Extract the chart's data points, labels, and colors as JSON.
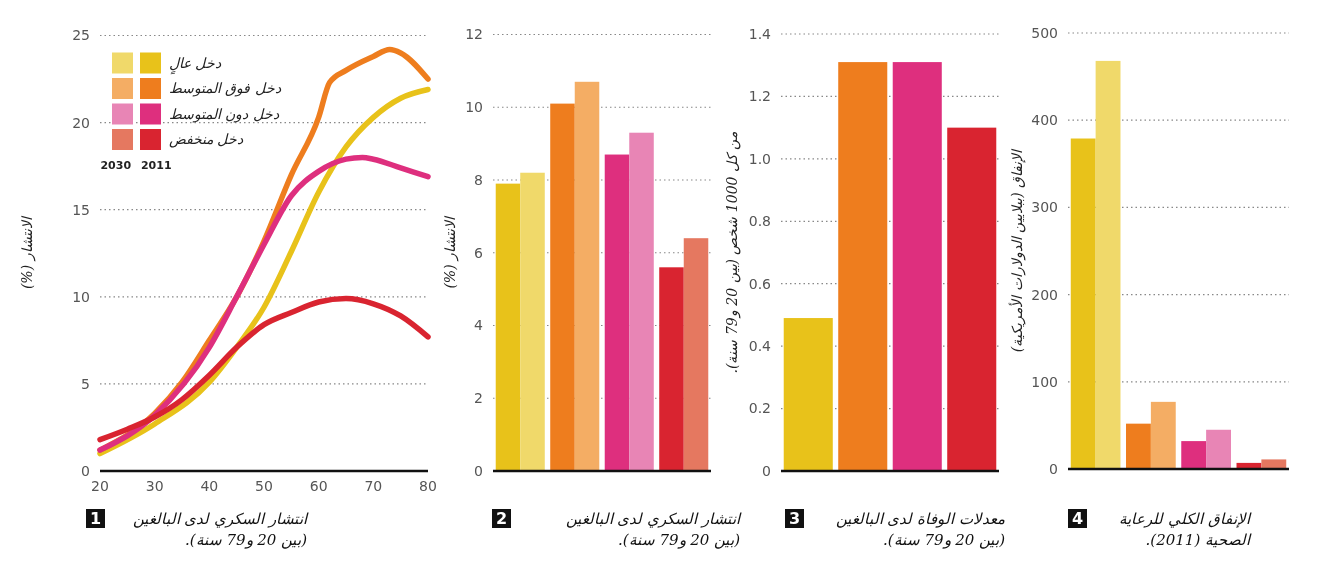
{
  "chart_data": [
    {
      "type": "line",
      "title": "انتشار السكري لدى البالغين",
      "subtitle": "(بين 20 و79 سنة).",
      "annotations": [
        "1"
      ],
      "legend_title": "2030 2011",
      "ylabel": "الانتشار (%)",
      "xlim": [
        20,
        80
      ],
      "xticks": [
        20,
        30,
        40,
        50,
        60,
        70,
        80
      ],
      "ylim": [
        0,
        25
      ],
      "yticks": [
        0,
        5,
        10,
        15,
        20,
        25
      ],
      "grid": "y",
      "legend": "top left",
      "series": [
        {
          "name": "دخل عالٍ",
          "color": "#e8c21a",
          "x": [
            20,
            30,
            40,
            45,
            50,
            55,
            60,
            65,
            70,
            75,
            80
          ],
          "values": [
            1.0,
            2.7,
            5.1,
            7.1,
            9.4,
            12.6,
            16.0,
            18.6,
            20.3,
            21.4,
            21.9
          ]
        },
        {
          "name": "دخل فوق المتوسط",
          "color": "#ee7d1e",
          "x": [
            20,
            30,
            35,
            40,
            45,
            50,
            55,
            60,
            62,
            65,
            70,
            73,
            75,
            80
          ],
          "values": [
            1.2,
            3.3,
            5.1,
            7.5,
            10.0,
            13.2,
            17.0,
            20.3,
            22.3,
            23.0,
            23.8,
            24.2,
            24.0,
            22.5
          ]
        },
        {
          "name": "دخل دون المتوسط",
          "color": "#de2f7e",
          "x": [
            20,
            30,
            40,
            45,
            50,
            55,
            60,
            65,
            68,
            70,
            75,
            80
          ],
          "values": [
            1.2,
            3.2,
            7.1,
            10.0,
            13.0,
            15.8,
            17.2,
            17.9,
            18.0,
            17.9,
            17.4,
            16.9
          ]
        },
        {
          "name": "دخل منخفض",
          "color": "#d92430",
          "x": [
            20,
            25,
            30,
            35,
            40,
            45,
            50,
            55,
            60,
            65,
            70,
            75,
            80
          ],
          "values": [
            1.8,
            2.4,
            3.1,
            4.1,
            5.5,
            7.1,
            8.4,
            9.1,
            9.7,
            9.9,
            9.6,
            8.9,
            7.7
          ]
        }
      ]
    },
    {
      "type": "bar",
      "title": "انتشار السكري لدى البالغين",
      "subtitle": "(بين 20 و79 سنة).",
      "annotations": [
        "2"
      ],
      "ylabel": "الانتشار (%)",
      "categories": [
        null,
        null,
        null,
        null
      ],
      "ylim": [
        0,
        12
      ],
      "yticks": [
        0,
        2,
        4,
        6,
        8,
        10,
        12
      ],
      "grid": "y",
      "series": [
        {
          "colors": [
            "#e8c21a",
            "#ee7d1e",
            "#de2f7e",
            "#d92430"
          ],
          "values": [
            7.9,
            10.1,
            8.7,
            5.6
          ]
        },
        {
          "colors": [
            "#f0d96a",
            "#f4ad64",
            "#e885b5",
            "#e57860"
          ],
          "values": [
            8.2,
            10.7,
            9.3,
            6.4
          ]
        }
      ]
    },
    {
      "type": "bar",
      "title": "معدلات الوفاة لدى البالغين",
      "subtitle": "(بين 20 و79 سنة).",
      "annotations": [
        "3"
      ],
      "ylabel": "من كل 1000 شخص (بين 20 و79 سنة).",
      "categories": [
        null,
        null,
        null,
        null
      ],
      "ylim": [
        0,
        1.4
      ],
      "yticks": [
        {
          "value": 0,
          "label": "0"
        },
        {
          "value": 0.2,
          "label": "0.2"
        },
        {
          "value": 0.4,
          "label": "0.4"
        },
        {
          "value": 0.6,
          "label": "0.6"
        },
        {
          "value": 0.8,
          "label": "0.8"
        },
        {
          "value": 1,
          "label": "1.0"
        },
        {
          "value": 1.2,
          "label": "1.2"
        },
        {
          "value": 1.4,
          "label": "1.4"
        }
      ],
      "grid": "y",
      "values": [
        0.49,
        1.31,
        1.31,
        1.1
      ],
      "colors": [
        "#e8c21a",
        "#ee7d1e",
        "#de2f7e",
        "#d92430"
      ]
    },
    {
      "type": "bar",
      "title": "الإنفاق الكلي للرعاية",
      "subtitle": "الصحية (2011).",
      "annotations": [
        "4"
      ],
      "ylabel": "الإنفاق (ببلايين الدولارات الأمريكية)",
      "categories": [
        null,
        null,
        null,
        null
      ],
      "ylim": [
        0,
        500
      ],
      "yticks": [
        0,
        100,
        200,
        300,
        400,
        500
      ],
      "grid": "y",
      "series": [
        {
          "colors": [
            "#e8c21a",
            "#ee7d1e",
            "#de2f7e",
            "#d92430"
          ],
          "values": [
            379,
            52,
            32,
            7
          ]
        },
        {
          "colors": [
            "#f0d96a",
            "#f4ad64",
            "#e885b5",
            "#e57860"
          ],
          "values": [
            468,
            77,
            45,
            11
          ]
        }
      ]
    }
  ]
}
